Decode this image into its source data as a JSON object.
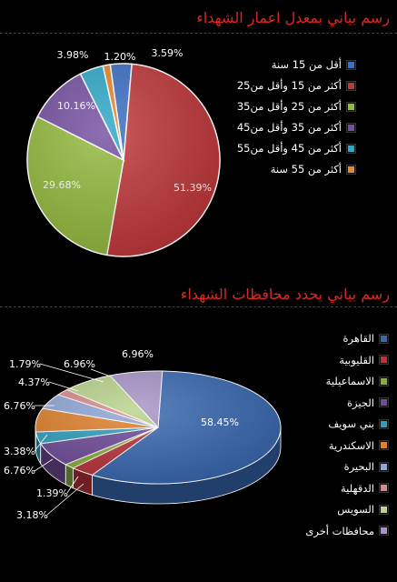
{
  "chart_data": [
    {
      "type": "pie",
      "title": "رسم بياني بمعدل اعمار الشهداء",
      "categories": [
        "أقل من 15 سنة",
        "أكثر من 15 وأقل من25",
        "أكثر من 25 وأقل من35",
        "أكثر من 35 وأقل من45",
        "أكثر من 45 وأقل من55",
        "أكثر من 55 سنة"
      ],
      "values": [
        3.59,
        51.39,
        29.68,
        10.16,
        3.98,
        1.2
      ],
      "labels": [
        "3.59%",
        "51.39%",
        "29.68%",
        "10.16%",
        "3.98%",
        "1.20%"
      ],
      "colors": [
        "#3b6fc4",
        "#c0373a",
        "#94ba3e",
        "#7550a2",
        "#2ea8c8",
        "#e8862a"
      ],
      "legend": "right"
    },
    {
      "type": "pie",
      "title": "رسم بياني يحدد محافظات الشهداء",
      "categories": [
        "القاهرة",
        "القليوبية",
        "الاسماعيلية",
        "الجيزة",
        "بني سويف",
        "الاسكندرية",
        "البحيرة",
        "الدقهلية",
        "السويس",
        "محافظات أخرى"
      ],
      "values": [
        58.45,
        3.18,
        1.39,
        6.76,
        3.38,
        6.76,
        4.37,
        1.79,
        6.96,
        6.96
      ],
      "labels": [
        "58.45%",
        "3.18%",
        "1.39%",
        "6.76%",
        "3.38%",
        "6.76%",
        "4.37%",
        "1.79%",
        "6.96%",
        "6.96%"
      ],
      "colors": [
        "#3868b0",
        "#b8333a",
        "#8aae3c",
        "#6f4b9a",
        "#2f9fbe",
        "#e0802c",
        "#8fa6d6",
        "#d88a8a",
        "#b8d38a",
        "#a795c8"
      ],
      "legend": "right"
    }
  ]
}
